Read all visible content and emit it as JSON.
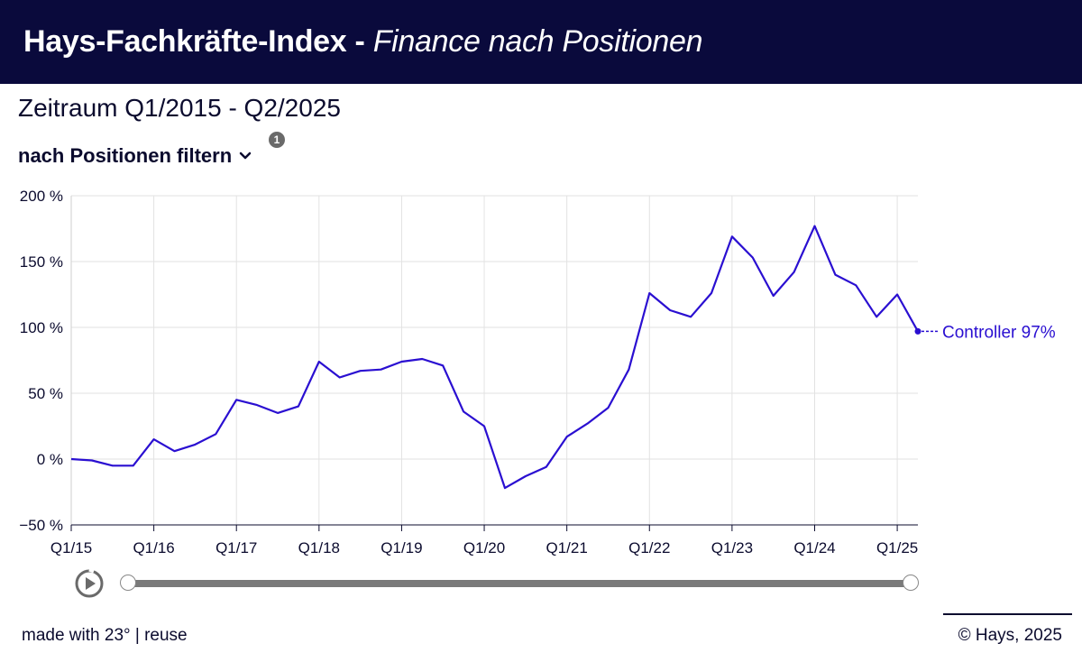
{
  "header": {
    "title": "Hays-Fachkräfte-Index",
    "separator": " - ",
    "subtitle": "Finance nach Positionen"
  },
  "period_label": "Zeitraum Q1/2015 - Q2/2025",
  "filter": {
    "label": "nach Positionen filtern",
    "badge": "1"
  },
  "footer": {
    "left": "made with 23° | reuse",
    "right": "© Hays, 2025"
  },
  "colors": {
    "header_bg": "#0a0a3c",
    "series": "#2a0fd1",
    "grid": "#e2e2e2"
  },
  "chart_data": {
    "type": "line",
    "x": [
      "Q1/15",
      "Q2/15",
      "Q3/15",
      "Q4/15",
      "Q1/16",
      "Q2/16",
      "Q3/16",
      "Q4/16",
      "Q1/17",
      "Q2/17",
      "Q3/17",
      "Q4/17",
      "Q1/18",
      "Q2/18",
      "Q3/18",
      "Q4/18",
      "Q1/19",
      "Q2/19",
      "Q3/19",
      "Q4/19",
      "Q1/20",
      "Q2/20",
      "Q3/20",
      "Q4/20",
      "Q1/21",
      "Q2/21",
      "Q3/21",
      "Q4/21",
      "Q1/22",
      "Q2/22",
      "Q3/22",
      "Q4/22",
      "Q1/23",
      "Q2/23",
      "Q3/23",
      "Q4/23",
      "Q1/24",
      "Q2/24",
      "Q3/24",
      "Q4/24",
      "Q1/25",
      "Q2/25"
    ],
    "x_tick_labels": [
      "Q1/15",
      "Q1/16",
      "Q1/17",
      "Q1/18",
      "Q1/19",
      "Q1/20",
      "Q1/21",
      "Q1/22",
      "Q1/23",
      "Q1/24",
      "Q1/25"
    ],
    "y_tick_labels": [
      "200 %",
      "150 %",
      "100 %",
      "50 %",
      "0 %",
      "−50 %"
    ],
    "y_ticks": [
      200,
      150,
      100,
      50,
      0,
      -50
    ],
    "ylim": [
      -50,
      200
    ],
    "grid": true,
    "series": [
      {
        "name": "Controller",
        "end_label": "Controller 97%",
        "values": [
          0,
          -1,
          -5,
          -5,
          15,
          6,
          11,
          19,
          45,
          41,
          35,
          40,
          74,
          62,
          67,
          68,
          74,
          76,
          71,
          36,
          25,
          -22,
          -13,
          -6,
          17,
          27,
          39,
          68,
          126,
          113,
          108,
          126,
          169,
          153,
          124,
          142,
          177,
          140,
          132,
          108,
          125,
          97
        ]
      }
    ]
  }
}
